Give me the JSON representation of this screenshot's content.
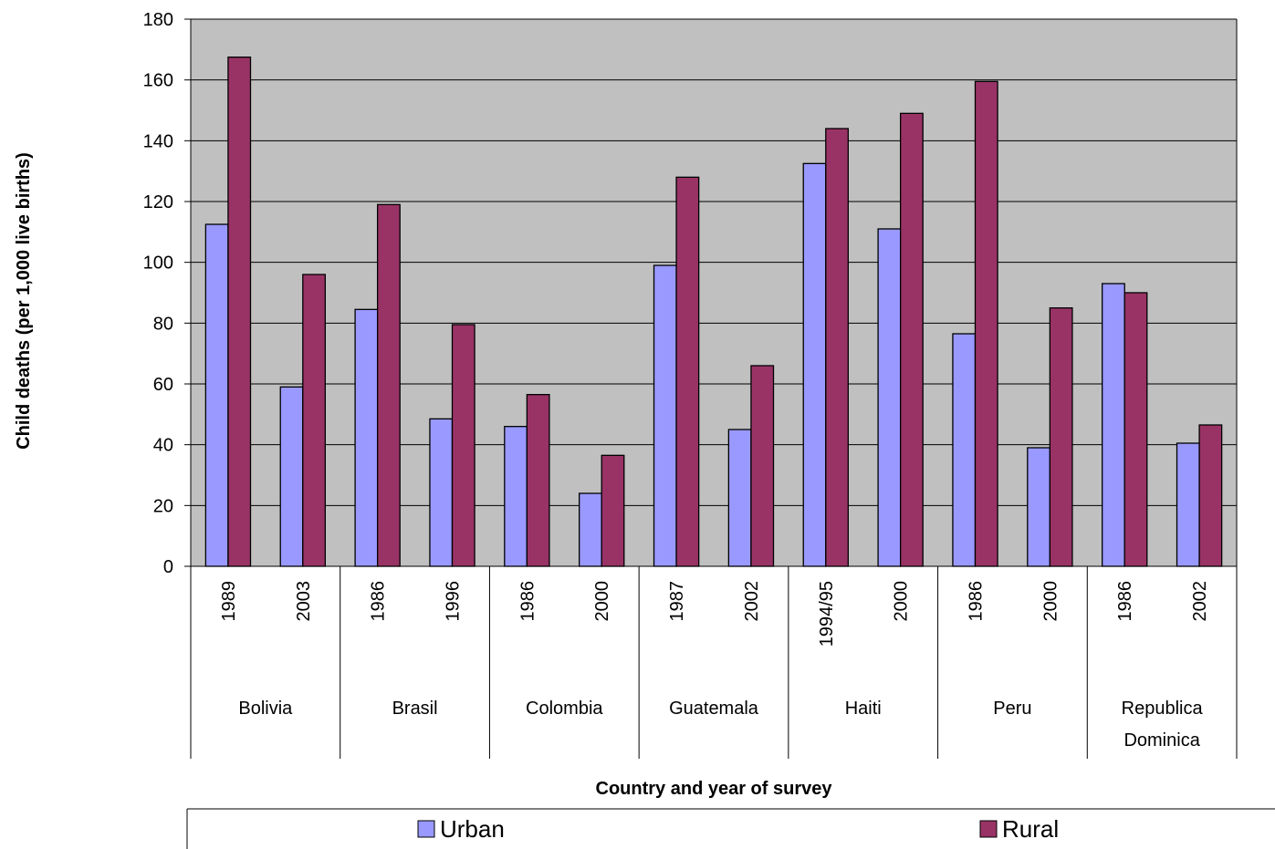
{
  "chart_data": {
    "type": "bar",
    "title": "",
    "ylabel": "Child deaths (per 1,000 live births)",
    "xlabel": "Country and year of survey",
    "ylim": [
      0,
      180
    ],
    "yticks": [
      0,
      20,
      40,
      60,
      80,
      100,
      120,
      140,
      160,
      180
    ],
    "grid": true,
    "legend_position": "bottom",
    "groups": [
      {
        "country_lines": [
          "Bolivia"
        ],
        "years": [
          "1989",
          "2003"
        ]
      },
      {
        "country_lines": [
          "Brasil"
        ],
        "years": [
          "1986",
          "1996"
        ]
      },
      {
        "country_lines": [
          "Colombia"
        ],
        "years": [
          "1986",
          "2000"
        ]
      },
      {
        "country_lines": [
          "Guatemala"
        ],
        "years": [
          "1987",
          "2002"
        ]
      },
      {
        "country_lines": [
          "Haiti"
        ],
        "years": [
          "1994/95",
          "2000"
        ]
      },
      {
        "country_lines": [
          "Peru"
        ],
        "years": [
          "1986",
          "2000"
        ]
      },
      {
        "country_lines": [
          "Republica",
          "Dominica"
        ],
        "years": [
          "1986",
          "2002"
        ]
      }
    ],
    "series": [
      {
        "name": "Urban",
        "color": "#9999FF",
        "values": [
          112.5,
          59,
          84.5,
          48.5,
          46,
          24,
          99,
          45,
          132.5,
          111,
          76.5,
          39,
          93,
          40.5
        ]
      },
      {
        "name": "Rural",
        "color": "#993366",
        "values": [
          167.5,
          96,
          119,
          79.5,
          56.5,
          36.5,
          128,
          66,
          144,
          149,
          159.5,
          85,
          90,
          46.5
        ]
      }
    ],
    "plot_background": "#C0C0C0"
  }
}
